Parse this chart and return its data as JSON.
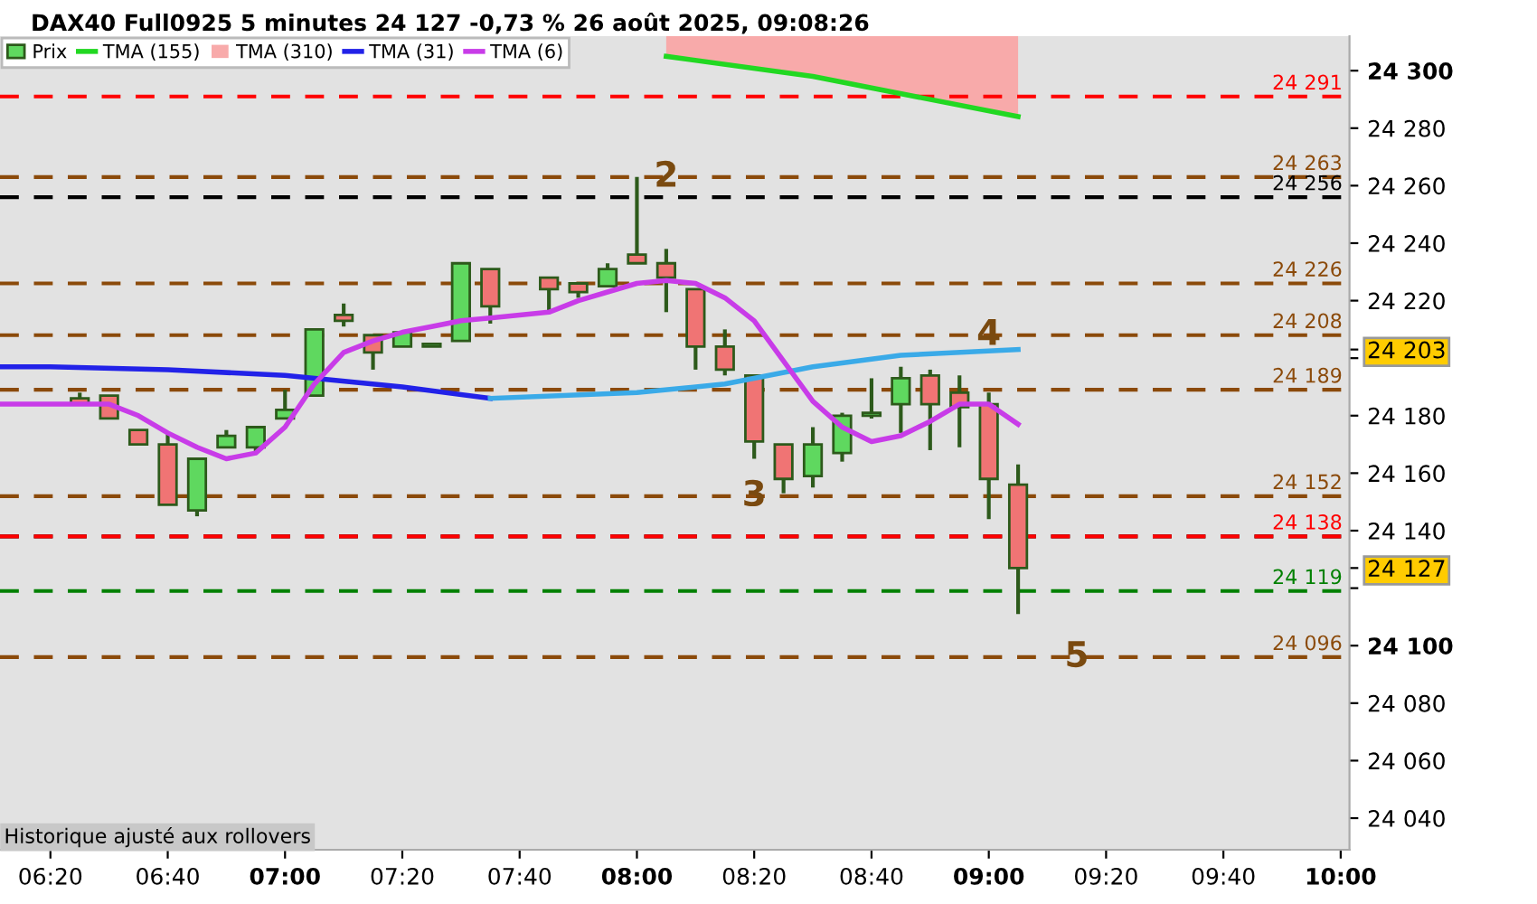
{
  "chart_data": {
    "type": "candlestick",
    "title": "DAX40 Full0925 5 minutes 24 127 -0,73 % 26 août 2025, 09:08:26",
    "xlim": [
      6.19,
      10.025
    ],
    "ylim": [
      24029,
      24312
    ],
    "xticks": [
      {
        "value": 6.3333,
        "label": "06:20"
      },
      {
        "value": 6.6667,
        "label": "06:40"
      },
      {
        "value": 7,
        "label": "07:00"
      },
      {
        "value": 7.3333,
        "label": "07:20"
      },
      {
        "value": 7.6667,
        "label": "07:40"
      },
      {
        "value": 8,
        "label": "08:00"
      },
      {
        "value": 8.3333,
        "label": "08:20"
      },
      {
        "value": 8.6667,
        "label": "08:40"
      },
      {
        "value": 9,
        "label": "09:00"
      },
      {
        "value": 9.3333,
        "label": "09:20"
      },
      {
        "value": 9.6667,
        "label": "09:40"
      },
      {
        "value": 10,
        "label": "10:00"
      }
    ],
    "yticks": [
      {
        "value": 24040,
        "label": "24 040"
      },
      {
        "value": 24060,
        "label": "24 060"
      },
      {
        "value": 24080,
        "label": "24 080"
      },
      {
        "value": 24100,
        "label": "24 100"
      },
      {
        "value": 24120,
        "label": null
      },
      {
        "value": 24127,
        "label": "24 127"
      },
      {
        "value": 24140,
        "label": "24 140"
      },
      {
        "value": 24160,
        "label": "24 160"
      },
      {
        "value": 24180,
        "label": "24 180"
      },
      {
        "value": 24200,
        "label": null
      },
      {
        "value": 24203,
        "label": "24 203"
      },
      {
        "value": 24220,
        "label": "24 220"
      },
      {
        "value": 24240,
        "label": "24 240"
      },
      {
        "value": 24260,
        "label": "24 260"
      },
      {
        "value": 24280,
        "label": "24 280"
      },
      {
        "value": 24300,
        "label": "24 300"
      }
    ],
    "grid": false,
    "legend": "top left",
    "series": [
      {
        "name": "Prix",
        "color": "#5fd85f",
        "x": [
          6.4167,
          6.5,
          6.5833,
          6.6667,
          6.75,
          6.8333,
          6.9167,
          7,
          7.0833,
          7.1667,
          7.25,
          7.3333,
          7.4167,
          7.5,
          7.5833,
          7.75,
          7.8333,
          7.9167,
          8,
          8.0833,
          8.1667,
          8.25,
          8.3333,
          8.4167,
          8.5,
          8.5833,
          8.6667,
          8.75,
          8.8333,
          8.9167,
          9,
          9.0833
        ],
        "ohlc": [
          [
            24186,
            24188,
            24184,
            24184
          ],
          [
            24187,
            24187,
            24179,
            24179
          ],
          [
            24175,
            24175,
            24170,
            24170
          ],
          [
            24170,
            24174,
            24149,
            24149
          ],
          [
            24147,
            24165,
            24145,
            24165
          ],
          [
            24169,
            24175,
            24169,
            24173
          ],
          [
            24169,
            24176,
            24167,
            24176
          ],
          [
            24179,
            24189,
            24179,
            24182
          ],
          [
            24187,
            24210,
            24187,
            24210
          ],
          [
            24215,
            24219,
            24211,
            24213
          ],
          [
            24208,
            24208,
            24196,
            24202
          ],
          [
            24204,
            24209,
            24204,
            24209
          ],
          [
            24204,
            24205,
            24204,
            24205
          ],
          [
            24206,
            24233,
            24206,
            24233
          ],
          [
            24231,
            24231,
            24212,
            24218
          ],
          [
            24228,
            24228,
            24216,
            24224
          ],
          [
            24226,
            24226,
            24221,
            24223
          ],
          [
            24225,
            24233,
            24225,
            24231
          ],
          [
            24236,
            24263,
            24233,
            24233
          ],
          [
            24233,
            24238,
            24216,
            24228
          ],
          [
            24224,
            24224,
            24196,
            24204
          ],
          [
            24204,
            24210,
            24194,
            24196
          ],
          [
            24194,
            24194,
            24165,
            24171
          ],
          [
            24170,
            24170,
            24153,
            24158
          ],
          [
            24159,
            24176,
            24155,
            24170
          ],
          [
            24167,
            24181,
            24164,
            24180
          ],
          [
            24180,
            24193,
            24179,
            24181
          ],
          [
            24184,
            24197,
            24174,
            24193
          ],
          [
            24194,
            24196,
            24168,
            24184
          ],
          [
            24188,
            24194,
            24169,
            24183
          ],
          [
            24184,
            24188,
            24144,
            24158
          ],
          [
            24156,
            24163,
            24111,
            24127
          ]
        ],
        "colors": [
          "#f07474",
          "#f07474",
          "#f07474",
          "#f07474",
          "#5fd85f",
          "#5fd85f",
          "#5fd85f",
          "#5fd85f",
          "#5fd85f",
          "#f07474",
          "#f07474",
          "#5fd85f",
          "#5fd85f",
          "#5fd85f",
          "#f07474",
          "#f07474",
          "#f07474",
          "#5fd85f",
          "#f07474",
          "#f07474",
          "#f07474",
          "#f07474",
          "#f07474",
          "#f07474",
          "#5fd85f",
          "#5fd85f",
          "#5fd85f",
          "#5fd85f",
          "#f07474",
          "#f07474",
          "#f07474",
          "#f07474"
        ]
      },
      {
        "name": "TMA (155)",
        "type": "line",
        "color": "#22d822",
        "x": [
          8.0833,
          8.5,
          9.0833
        ],
        "values": [
          24305,
          24298,
          24284
        ]
      },
      {
        "name": "TMA (310)",
        "type": "line",
        "color": "#f8aaaa",
        "x": [
          8.0833,
          8.5,
          9.0833
        ],
        "values": [
          null,
          null,
          null
        ],
        "lower": [
          24305,
          24298,
          24284
        ],
        "upper": [
          24312,
          24312,
          24312
        ]
      },
      {
        "name": "TMA (31)",
        "type": "line",
        "color": "#2222e8",
        "x": [
          6.19,
          6.3333,
          6.6667,
          7,
          7.3333,
          7.5833
        ],
        "values": [
          24197,
          24197,
          24196,
          24194,
          24190,
          24186
        ]
      },
      {
        "type": "line",
        "color": "#3aaae8",
        "x": [
          7.5833,
          8,
          8.25,
          8.5,
          8.75,
          9.0833
        ],
        "values": [
          24186,
          24188,
          24191,
          24197,
          24201,
          24203
        ]
      },
      {
        "name": "TMA (6)",
        "type": "line",
        "color": "#c83ce8",
        "x": [
          6.19,
          6.4167,
          6.5,
          6.5833,
          6.6667,
          6.75,
          6.8333,
          6.9167,
          7,
          7.0833,
          7.1667,
          7.25,
          7.3333,
          7.4167,
          7.5,
          7.5833,
          7.75,
          7.8333,
          7.9167,
          8,
          8.0833,
          8.1667,
          8.25,
          8.3333,
          8.4167,
          8.5,
          8.5833,
          8.6667,
          8.75,
          8.8333,
          8.9167,
          9,
          9.0833
        ],
        "values": [
          24184,
          24184,
          24184,
          24180,
          24174,
          24169,
          24165,
          24167,
          24176,
          24191,
          24202,
          24206,
          24209,
          24211,
          24213,
          24214,
          24216,
          24220,
          24223,
          24226,
          24227,
          24226,
          24221,
          24213,
          24199,
          24185,
          24176,
          24171,
          24173,
          24178,
          24184,
          24184,
          24177
        ]
      }
    ],
    "ref_lines": [
      {
        "axis": "y",
        "value": 24291,
        "label": "24 291",
        "color": "#ff0000",
        "line_style": "dashed"
      },
      {
        "axis": "y",
        "value": 24263,
        "label": "24 263",
        "color": "#8b4a0a",
        "line_style": "dashed"
      },
      {
        "axis": "y",
        "value": 24256,
        "label": "24 256",
        "color": "#000000",
        "line_style": "dashed"
      },
      {
        "axis": "y",
        "value": 24226,
        "label": "24 226",
        "color": "#8b4a0a",
        "line_style": "dashed"
      },
      {
        "axis": "y",
        "value": 24208,
        "label": "24 208",
        "color": "#8b4a0a",
        "line_style": "dashed"
      },
      {
        "axis": "y",
        "value": 24189,
        "label": "24 189",
        "color": "#8b4a0a",
        "line_style": "dashed"
      },
      {
        "axis": "y",
        "value": 24152,
        "label": "24 152",
        "color": "#8b4a0a",
        "line_style": "dashed"
      },
      {
        "axis": "y",
        "value": 24138,
        "color": "#000000",
        "line_style": "dashed"
      },
      {
        "axis": "y",
        "value": 24138,
        "label": "24 138",
        "color": "#ff0000",
        "line_style": "dashed"
      },
      {
        "axis": "y",
        "value": 24119,
        "label": "24 119",
        "color": "#008000",
        "line_style": "dashed"
      },
      {
        "axis": "y",
        "value": 24096,
        "label": "24 096",
        "color": "#8b4a0a",
        "line_style": "dashed"
      }
    ],
    "annotations": [
      {
        "text": "2",
        "x": 8.0833,
        "y": 24263
      },
      {
        "text": "3",
        "x": 8.3333,
        "y": 24152
      },
      {
        "text": "4",
        "x": 9,
        "y": 24208
      },
      {
        "text": "5",
        "x": 9.25,
        "y": 24096
      },
      "Historique ajusté aux rollovers"
    ]
  }
}
